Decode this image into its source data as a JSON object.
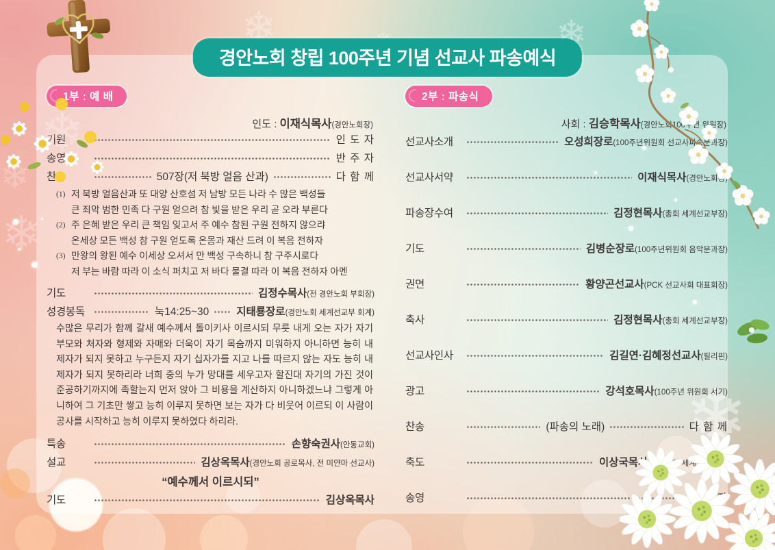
{
  "title": "경안노회 창립 100주년 기념 선교사 파송예식",
  "colors": {
    "banner_teal": "#16a195",
    "badge_pink": "#f0639b"
  },
  "part1": {
    "badge": "1부 : 예 배",
    "header": {
      "prefix": "인도 : ",
      "name": "이재식목사",
      "role": "(경안노회장)"
    },
    "rows_top": [
      {
        "label": "기원",
        "right": "인 도 자"
      },
      {
        "label": "송영",
        "right": "반 주 자"
      },
      {
        "label": "찬송",
        "center": "507장(저 북방 얼음 산과)",
        "right": "다 함 께"
      }
    ],
    "hymn_verses": [
      {
        "num": "(1)",
        "lines": [
          "저 북방 얼음산과 또 대양 산호섬  저 남방 모든 나라 수 많은 백성들",
          "큰 죄악 범한 민족 다 구원 얻으려  참 빛을 받은 우리 곧 오라 부른다"
        ]
      },
      {
        "num": "(2)",
        "lines": [
          "주 은혜 받은 우리 큰 책임 잊고서  주 예수 참된 구원 전하지 않으랴",
          "온세상 모든 백성 참 구원 얻도록  온몸과 재산 드려 이 복음 전하자"
        ]
      },
      {
        "num": "(3)",
        "lines": [
          "만왕의 왕된 예수 이세상 오셔서  만 백성 구속하니 참 구주시로다",
          "저 부는 바람 따라 이 소식 퍼치고 저 바다 물결 따라 이 복음 전하자 아멘"
        ]
      }
    ],
    "rows_mid": [
      {
        "label": "기도",
        "name": "김정수목사",
        "role": " (전 경안노회 부회장)"
      },
      {
        "label": "성경봉독",
        "center": "눅14:25~30",
        "short_leader": true,
        "name": "지태룡장로",
        "role": "(경안노회 세계선교부 회계)"
      }
    ],
    "scripture": "수많은 무리가 함께 갈새 예수께서 돌이키사 이르시되 무릇 내게 오는 자가 자기 부모와 처자와 형제와 자매와 더욱이 자기 목숨까지 미워하지 아니하면 능히 내 제자가 되지 못하고 누구든지 자기 십자가를 지고 나를 따르지 않는 자도 능히 내 제자가 되지 못하리라 너희 중의 누가 망대를 세우고자 할진대 자기의 가진 것이 준공하기까지에 족할는지 먼저 앉아 그 비용을 계산하지 아니하겠느냐 그렇게 아니하여 그 기초만 쌓고 능히 이루지 못하면 보는 자가 다 비웃어 이르되 이 사람이 공사를 시작하고 능히 이루지 못하였다 하리라.",
    "rows_after": [
      {
        "label": "특송",
        "name": "손향숙권사",
        "role": "(안동교회)"
      },
      {
        "label": "설교",
        "name": "김상옥목사",
        "role": "(경안노회 공로목사, 전 미얀마 선교사)"
      }
    ],
    "sermon_title": "“예수께서 이르시되”",
    "rows_end": [
      {
        "label": "기도",
        "name": "김상옥목사"
      }
    ]
  },
  "part2": {
    "badge": "2부 : 파송식",
    "header": {
      "prefix": "사회 : ",
      "name": "김승학목사",
      "role": "(경안노회100주년 위원장)"
    },
    "rows": [
      {
        "label": "선교사소개",
        "name": "오성희장로",
        "role": "(100주년위원회 선교사파송분과장)"
      },
      {
        "label": "선교사서약",
        "name": "이재식목사",
        "role": "(경안노회장)"
      },
      {
        "label": "파송장수여",
        "name": "김정현목사",
        "role": "(총회 세계선교부장)"
      },
      {
        "label": "기도",
        "name": "김병순장로",
        "role": "(100주년위원회 음악분과장)"
      },
      {
        "label": "권면",
        "name": "황양곤선교사",
        "role": "(PCK 선교사회 대표회장)"
      },
      {
        "label": "축사",
        "name": "김정현목사",
        "role": "(총회 세계선교부장)"
      },
      {
        "label": "선교사인사",
        "name": "김길연·김혜정선교사",
        "role": "(필리핀)"
      },
      {
        "label": "광고",
        "name": "강석호목사",
        "role": "(100주년 위원회 서기)"
      },
      {
        "label": "찬송",
        "center": "(파송의 노래)",
        "right": "다 함 께"
      },
      {
        "label": "축도",
        "name": "이상국목사",
        "role": "(경안노회 세계선교부장)"
      },
      {
        "label": "송영",
        "right": "반 주 자"
      }
    ]
  },
  "decorations": {
    "cross_icon": "wooden-cross-with-heart",
    "top_left_flowers": "daisy-cluster",
    "top_right": "white-blossom-branch",
    "bottom_right": "white-chrysanthemum-bouquet",
    "snowflake_glyph": "❄"
  }
}
